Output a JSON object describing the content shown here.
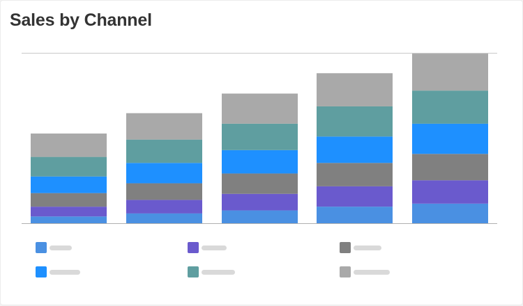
{
  "header": {
    "title": "Sales by Channel"
  },
  "chart_data": {
    "type": "bar",
    "stacked": true,
    "title": "Sales by Channel",
    "xlabel": "",
    "ylabel": "",
    "ylim": [
      0,
      226
    ],
    "grid": false,
    "legend_placement": "bottom",
    "categories": [
      "",
      "",
      "",
      "",
      ""
    ],
    "series": [
      {
        "color": "#4a90e2",
        "values": [
          9,
          13,
          17,
          22,
          26
        ]
      },
      {
        "color": "#6a5acd",
        "values": [
          13,
          18,
          22,
          27,
          31
        ]
      },
      {
        "color": "#808080",
        "values": [
          18,
          22,
          27,
          31,
          35
        ]
      },
      {
        "color": "#1e90ff",
        "values": [
          22,
          27,
          31,
          35,
          40
        ]
      },
      {
        "color": "#5f9ea0",
        "values": [
          26,
          31,
          35,
          40,
          44
        ]
      },
      {
        "color": "#a9a9a9",
        "values": [
          31,
          35,
          40,
          44,
          49
        ]
      }
    ]
  },
  "legend": {
    "items": [
      {
        "color": "#4a90e2",
        "label_width": 32
      },
      {
        "color": "#6a5acd",
        "label_width": 36
      },
      {
        "color": "#808080",
        "label_width": 40
      },
      {
        "color": "#1e90ff",
        "label_width": 44
      },
      {
        "color": "#5f9ea0",
        "label_width": 48
      },
      {
        "color": "#a9a9a9",
        "label_width": 52
      }
    ]
  }
}
